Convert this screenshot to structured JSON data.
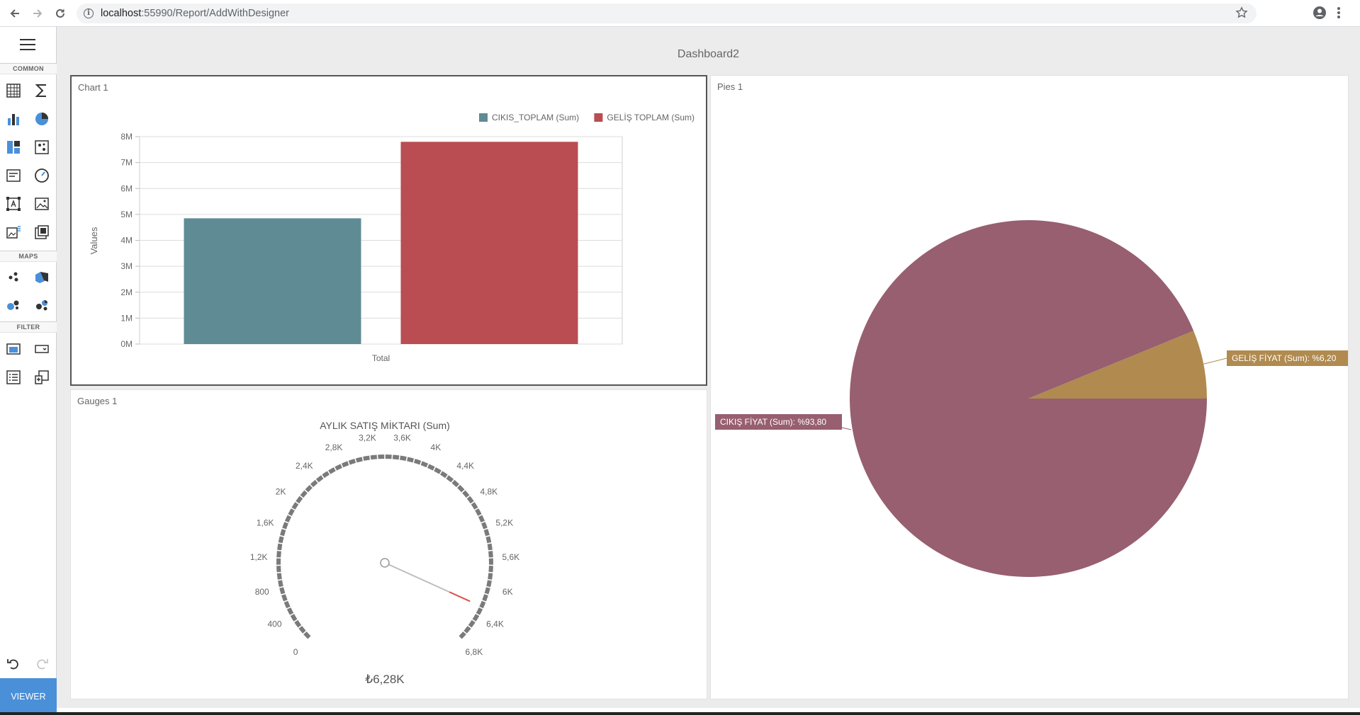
{
  "browser": {
    "url_host": "localhost",
    "url_path": ":55990/Report/AddWithDesigner"
  },
  "toolbox": {
    "sections": [
      "COMMON",
      "MAPS",
      "FILTER"
    ],
    "viewer_label": "VIEWER"
  },
  "dashboard": {
    "title": "Dashboard2"
  },
  "chart_card": {
    "title": "Chart 1"
  },
  "gauge_card": {
    "title": "Gauges 1"
  },
  "pie_card": {
    "title": "Pies 1"
  },
  "chart_data": [
    {
      "type": "bar",
      "categories": [
        "Total"
      ],
      "series": [
        {
          "name": "CIKIS_TOPLAM (Sum)",
          "values": [
            4.85
          ],
          "color": "#5f8b94"
        },
        {
          "name": "GELİŞ TOPLAM (Sum)",
          "values": [
            7.8
          ],
          "color": "#b94d52"
        }
      ],
      "xlabel": "Total",
      "ylabel": "Values",
      "yticks": [
        "0M",
        "1M",
        "2M",
        "3M",
        "4M",
        "5M",
        "6M",
        "7M",
        "8M"
      ],
      "ylim": [
        0,
        8
      ],
      "legend": "top-right",
      "grid": true
    },
    {
      "type": "gauge",
      "title": "AYLIK SATIŞ MİKTARI (Sum)",
      "ticks": [
        "0",
        "400",
        "800",
        "1,2K",
        "1,6K",
        "2K",
        "2,4K",
        "2,8K",
        "3,2K",
        "3,6K",
        "4K",
        "4,4K",
        "4,8K",
        "5,2K",
        "5,6K",
        "6K",
        "6,4K",
        "6,8K"
      ],
      "range": [
        0,
        6800
      ],
      "value": 6280,
      "value_label": "₺6,28K"
    },
    {
      "type": "pie",
      "slices": [
        {
          "label": "CIKIŞ FİYAT (Sum): %93,80",
          "value": 93.8,
          "color": "#975f70"
        },
        {
          "label": "GELİŞ FİYAT (Sum): %6,20",
          "value": 6.2,
          "color": "#b08a4f"
        }
      ]
    }
  ]
}
